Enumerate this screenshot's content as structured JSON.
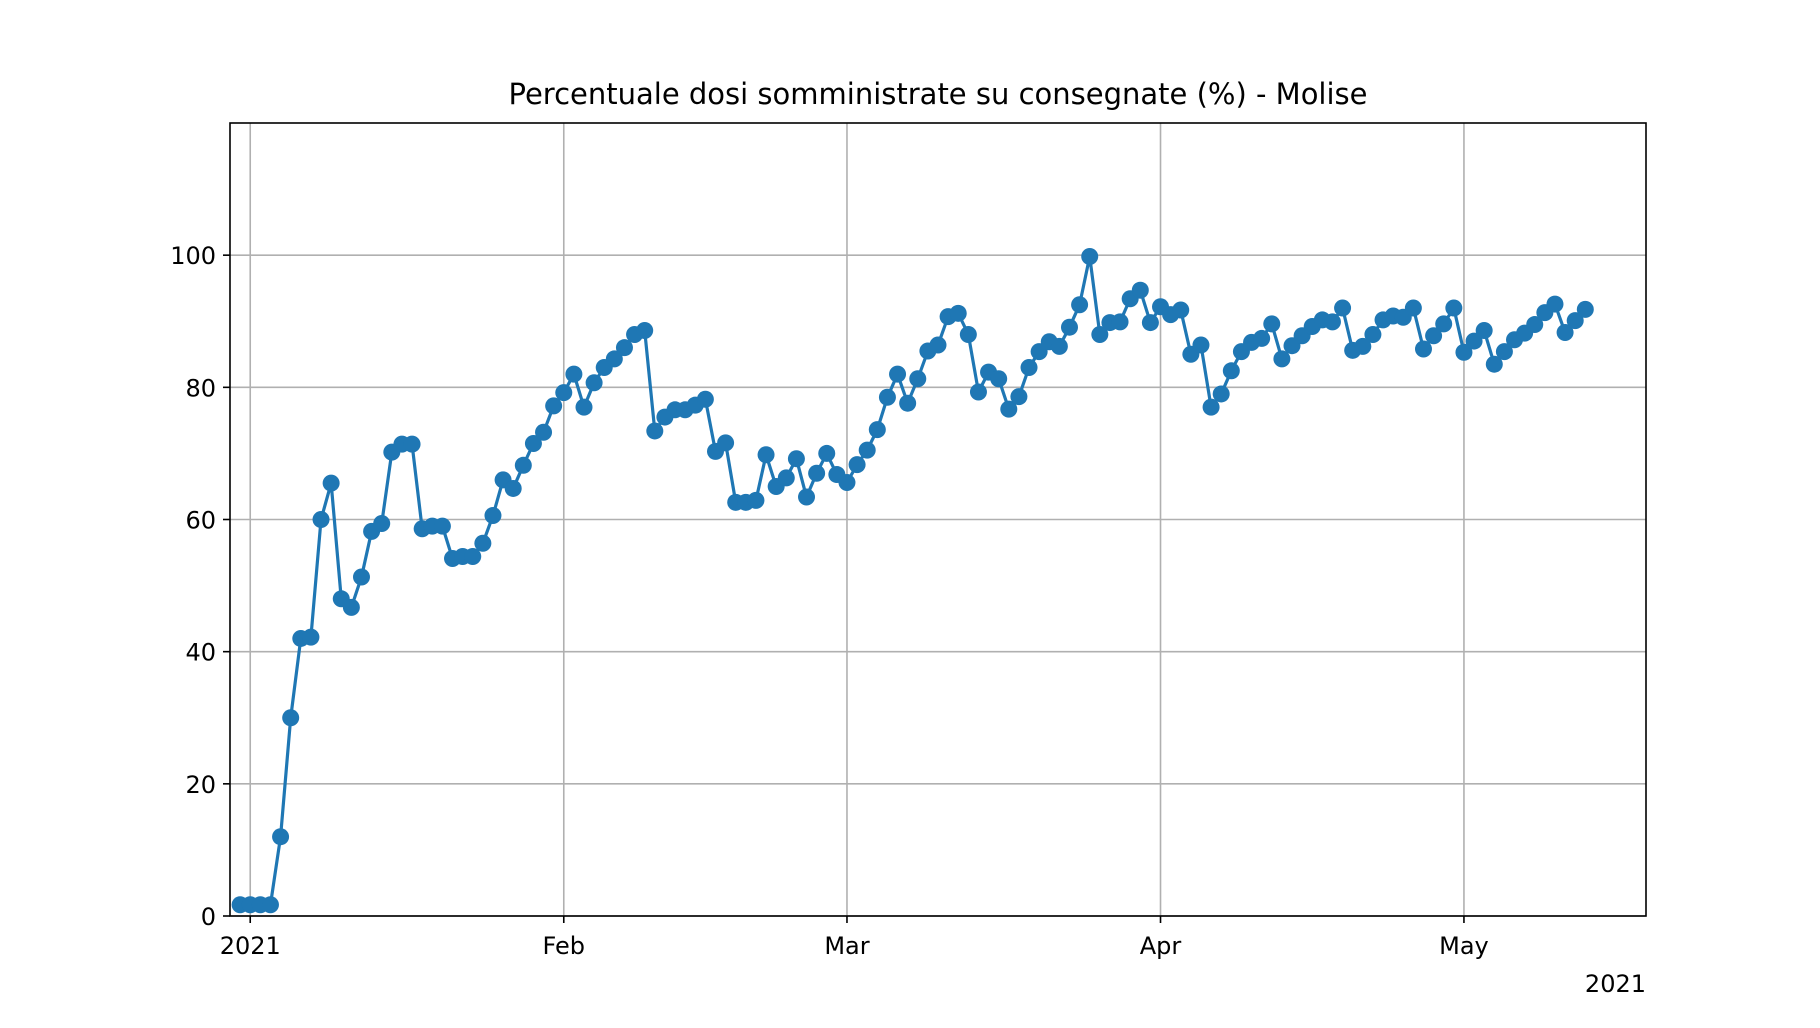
{
  "chart_data": {
    "type": "line",
    "title": "Percentuale dosi somministrate su consegnate (%) - Molise",
    "xlabel": "",
    "ylabel": "",
    "x_start": "2020-12-31",
    "x_step": "1 day",
    "xlim": [
      "2020-12-30",
      "2021-05-19"
    ],
    "ylim": [
      0,
      120
    ],
    "grid": true,
    "legend": "none",
    "marker": "circle",
    "color": "#1f77b4",
    "x_ticks": [
      {
        "date": "2021-01-01",
        "label": "2021"
      },
      {
        "date": "2021-02-01",
        "label": "Feb"
      },
      {
        "date": "2021-03-01",
        "label": "Mar"
      },
      {
        "date": "2021-04-01",
        "label": "Apr"
      },
      {
        "date": "2021-05-01",
        "label": "May"
      }
    ],
    "x_offset_label": "2021",
    "y_ticks": [
      {
        "value": 0,
        "label": "0"
      },
      {
        "value": 20,
        "label": "20"
      },
      {
        "value": 40,
        "label": "40"
      },
      {
        "value": 60,
        "label": "60"
      },
      {
        "value": 80,
        "label": "80"
      },
      {
        "value": 100,
        "label": "100"
      }
    ],
    "series": [
      {
        "values": [
          1.7,
          1.7,
          1.7,
          1.7,
          12.0,
          30.0,
          42.0,
          42.2,
          60.0,
          65.5,
          48.0,
          46.7,
          51.3,
          58.2,
          59.4,
          70.2,
          71.4,
          71.4,
          58.6,
          59.0,
          59.0,
          54.1,
          54.4,
          54.4,
          56.4,
          60.6,
          66.0,
          64.7,
          68.2,
          71.5,
          73.2,
          77.2,
          79.2,
          82.0,
          77.0,
          80.7,
          83.0,
          84.3,
          86.0,
          88.0,
          88.6,
          73.4,
          75.5,
          76.6,
          76.6,
          77.3,
          78.2,
          70.3,
          71.6,
          62.6,
          62.6,
          62.9,
          69.8,
          65.0,
          66.3,
          69.2,
          63.4,
          67.0,
          70.0,
          66.8,
          65.6,
          68.3,
          70.5,
          73.6,
          78.5,
          82.0,
          77.6,
          81.3,
          85.5,
          86.4,
          90.7,
          91.2,
          88.0,
          79.3,
          82.3,
          81.3,
          76.7,
          78.6,
          83.0,
          85.4,
          86.9,
          86.2,
          89.1,
          92.5,
          99.8,
          88.0,
          89.8,
          89.9,
          93.4,
          94.7,
          89.8,
          92.2,
          91.0,
          91.7,
          85.0,
          86.4,
          77.0,
          79.0,
          82.5,
          85.4,
          86.8,
          87.4,
          89.6,
          84.3,
          86.3,
          87.8,
          89.2,
          90.2,
          89.9,
          92.0,
          85.6,
          86.2,
          88.0,
          90.2,
          90.8,
          90.6,
          92.0,
          85.8,
          87.8,
          89.6,
          92.0,
          85.3,
          87.0,
          88.6,
          83.5,
          85.4,
          87.2,
          88.2,
          89.5,
          91.3,
          92.6,
          88.3,
          90.1,
          91.8
        ]
      }
    ]
  }
}
